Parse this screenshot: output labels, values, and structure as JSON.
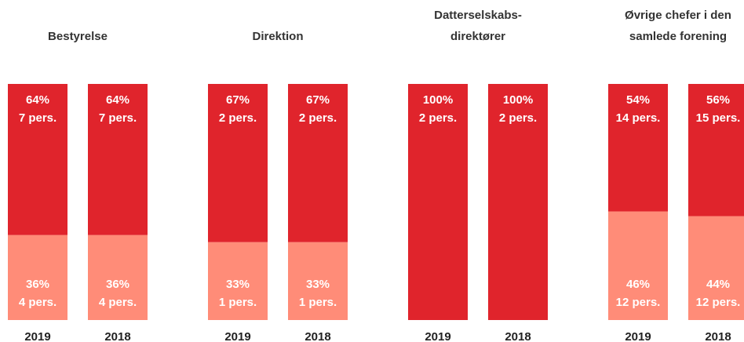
{
  "chart_data": [
    {
      "type": "stacked-bar",
      "title": [
        "Bestyrelse"
      ],
      "categories": [
        "2019",
        "2018"
      ],
      "ylim": [
        0,
        100
      ],
      "series": [
        {
          "color": "#ff8c78",
          "values": [
            36,
            36
          ],
          "value_labels": [
            "36%",
            "36%"
          ],
          "count_labels": [
            "4 pers.",
            "4 pers."
          ]
        },
        {
          "color": "#e0242c",
          "values": [
            64,
            64
          ],
          "value_labels": [
            "64%",
            "64%"
          ],
          "count_labels": [
            "7 pers.",
            "7 pers."
          ]
        }
      ]
    },
    {
      "type": "stacked-bar",
      "title": [
        "Direktion"
      ],
      "categories": [
        "2019",
        "2018"
      ],
      "ylim": [
        0,
        100
      ],
      "series": [
        {
          "color": "#ff8c78",
          "values": [
            33,
            33
          ],
          "value_labels": [
            "33%",
            "33%"
          ],
          "count_labels": [
            "1 pers.",
            "1 pers."
          ]
        },
        {
          "color": "#e0242c",
          "values": [
            67,
            67
          ],
          "value_labels": [
            "67%",
            "67%"
          ],
          "count_labels": [
            "2 pers.",
            "2 pers."
          ]
        }
      ]
    },
    {
      "type": "stacked-bar",
      "title": [
        "Datterselskabs-",
        "direktører"
      ],
      "categories": [
        "2019",
        "2018"
      ],
      "ylim": [
        0,
        100
      ],
      "series": [
        {
          "color": "#e0242c",
          "values": [
            100,
            100
          ],
          "value_labels": [
            "100%",
            "100%"
          ],
          "count_labels": [
            "2 pers.",
            "2 pers."
          ]
        }
      ]
    },
    {
      "type": "stacked-bar",
      "title": [
        "Øvrige chefer i den",
        "samlede forening"
      ],
      "categories": [
        "2019",
        "2018"
      ],
      "ylim": [
        0,
        100
      ],
      "series": [
        {
          "color": "#ff8c78",
          "values": [
            46,
            44
          ],
          "value_labels": [
            "46%",
            "44%"
          ],
          "count_labels": [
            "12 pers.",
            "12 pers."
          ]
        },
        {
          "color": "#e0242c",
          "values": [
            54,
            56
          ],
          "value_labels": [
            "54%",
            "56%"
          ],
          "count_labels": [
            "14 pers.",
            "15 pers."
          ]
        }
      ]
    }
  ]
}
